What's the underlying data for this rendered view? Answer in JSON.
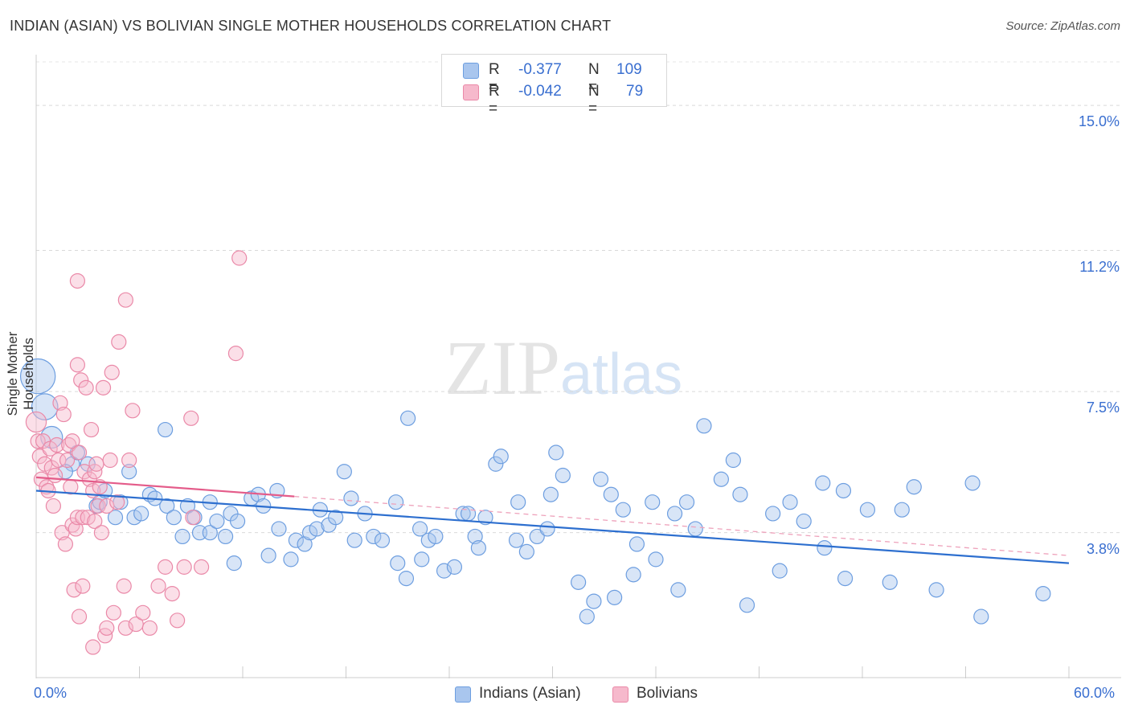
{
  "title": "INDIAN (ASIAN) VS BOLIVIAN SINGLE MOTHER HOUSEHOLDS CORRELATION CHART",
  "source": "Source: ZipAtlas.com",
  "watermark": {
    "zip": "ZIP",
    "atlas": "atlas"
  },
  "legend_top": [
    {
      "r_label": "R =",
      "r_value": "-0.377",
      "n_label": "N =",
      "n_value": "109",
      "color": "#a9c6ee",
      "stroke": "#6d9ee0"
    },
    {
      "r_label": "R =",
      "r_value": "-0.042",
      "n_label": "N =",
      "n_value": "79",
      "color": "#f6b9cc",
      "stroke": "#ea89a8"
    }
  ],
  "legend_bottom": [
    {
      "label": "Indians (Asian)",
      "color": "#a9c6ee",
      "stroke": "#6d9ee0"
    },
    {
      "label": "Bolivians",
      "color": "#f6b9cc",
      "stroke": "#ea89a8"
    }
  ],
  "chart_data": {
    "type": "scatter",
    "title": "INDIAN (ASIAN) VS BOLIVIAN SINGLE MOTHER HOUSEHOLDS CORRELATION CHART",
    "xlabel": "",
    "ylabel": "Single Mother Households",
    "xlim": [
      0,
      60
    ],
    "ylim": [
      0,
      16.5
    ],
    "x_tick_labels": [
      "0.0%",
      "60.0%"
    ],
    "y_ticks": [
      3.8,
      7.5,
      11.2,
      15.0
    ],
    "y_tick_labels": [
      "3.8%",
      "7.5%",
      "11.2%",
      "15.0%"
    ],
    "grid": true,
    "series": [
      {
        "name": "Indians (Asian)",
        "color": "#6d9ee0",
        "fill": "rgba(169,198,238,0.45)",
        "trend": {
          "x": [
            0,
            60
          ],
          "y": [
            4.9,
            3.0
          ],
          "color": "#2d6fcf"
        },
        "points": [
          [
            0.1,
            7.9,
            2.4
          ],
          [
            0.5,
            7.1,
            1.8
          ],
          [
            0.9,
            6.3,
            1.5
          ],
          [
            2.1,
            5.6,
            1
          ],
          [
            2.4,
            5.9,
            1
          ],
          [
            1.7,
            5.4,
            1
          ],
          [
            3.0,
            5.6,
            1
          ],
          [
            3.5,
            4.5,
            1
          ],
          [
            3.7,
            4.6,
            1
          ],
          [
            4.0,
            4.9,
            1
          ],
          [
            4.6,
            4.2,
            1
          ],
          [
            4.9,
            4.6,
            1
          ],
          [
            5.4,
            5.4,
            1
          ],
          [
            5.7,
            4.2,
            1
          ],
          [
            6.1,
            4.3,
            1
          ],
          [
            6.6,
            4.8,
            1
          ],
          [
            6.9,
            4.7,
            1
          ],
          [
            7.5,
            6.5,
            1
          ],
          [
            7.6,
            4.5,
            1
          ],
          [
            8.0,
            4.2,
            1
          ],
          [
            8.5,
            3.7,
            1
          ],
          [
            8.8,
            4.5,
            1
          ],
          [
            9.2,
            4.2,
            1
          ],
          [
            9.5,
            3.8,
            1
          ],
          [
            10.1,
            3.8,
            1
          ],
          [
            10.1,
            4.6,
            1
          ],
          [
            10.5,
            4.1,
            1
          ],
          [
            11.0,
            3.7,
            1
          ],
          [
            11.3,
            4.3,
            1
          ],
          [
            11.5,
            3.0,
            1
          ],
          [
            11.7,
            4.1,
            1
          ],
          [
            12.5,
            4.7,
            1
          ],
          [
            12.9,
            4.8,
            1
          ],
          [
            13.2,
            4.5,
            1
          ],
          [
            13.5,
            3.2,
            1
          ],
          [
            14.0,
            4.9,
            1
          ],
          [
            14.1,
            3.9,
            1
          ],
          [
            14.8,
            3.1,
            1
          ],
          [
            15.1,
            3.6,
            1
          ],
          [
            15.6,
            3.5,
            1
          ],
          [
            15.9,
            3.8,
            1
          ],
          [
            16.3,
            3.9,
            1
          ],
          [
            16.5,
            4.4,
            1
          ],
          [
            17.0,
            4.0,
            1
          ],
          [
            17.4,
            4.2,
            1
          ],
          [
            17.9,
            5.4,
            1
          ],
          [
            18.3,
            4.7,
            1
          ],
          [
            18.5,
            3.6,
            1
          ],
          [
            19.1,
            4.3,
            1
          ],
          [
            19.6,
            3.7,
            1
          ],
          [
            20.1,
            3.6,
            1
          ],
          [
            20.9,
            4.6,
            1
          ],
          [
            21.0,
            3.0,
            1
          ],
          [
            21.5,
            2.6,
            1
          ],
          [
            21.6,
            6.8,
            1
          ],
          [
            22.3,
            3.9,
            1
          ],
          [
            22.4,
            3.1,
            1
          ],
          [
            22.8,
            3.6,
            1
          ],
          [
            23.2,
            3.7,
            1
          ],
          [
            23.7,
            2.8,
            1
          ],
          [
            24.3,
            2.9,
            1
          ],
          [
            24.8,
            4.3,
            1
          ],
          [
            25.1,
            4.3,
            1
          ],
          [
            25.5,
            3.7,
            1
          ],
          [
            25.7,
            3.4,
            1
          ],
          [
            26.1,
            4.2,
            1
          ],
          [
            26.7,
            5.6,
            1
          ],
          [
            27.0,
            5.8,
            1
          ],
          [
            27.9,
            3.6,
            1
          ],
          [
            28.0,
            4.6,
            1
          ],
          [
            28.5,
            3.3,
            1
          ],
          [
            29.1,
            3.7,
            1
          ],
          [
            29.7,
            3.9,
            1
          ],
          [
            29.9,
            4.8,
            1
          ],
          [
            30.2,
            5.9,
            1
          ],
          [
            30.6,
            5.3,
            1
          ],
          [
            31.5,
            2.5,
            1
          ],
          [
            32.0,
            1.6,
            1
          ],
          [
            32.4,
            2.0,
            1
          ],
          [
            32.8,
            5.2,
            1
          ],
          [
            33.4,
            4.8,
            1
          ],
          [
            33.6,
            2.1,
            1
          ],
          [
            34.1,
            4.4,
            1
          ],
          [
            34.7,
            2.7,
            1
          ],
          [
            34.9,
            3.5,
            1
          ],
          [
            35.8,
            4.6,
            1
          ],
          [
            36.0,
            3.1,
            1
          ],
          [
            37.1,
            4.3,
            1
          ],
          [
            37.3,
            2.3,
            1
          ],
          [
            37.8,
            4.6,
            1
          ],
          [
            38.3,
            3.9,
            1
          ],
          [
            38.8,
            6.6,
            1
          ],
          [
            39.8,
            5.2,
            1
          ],
          [
            40.5,
            5.7,
            1
          ],
          [
            40.9,
            4.8,
            1
          ],
          [
            41.3,
            1.9,
            1
          ],
          [
            42.8,
            4.3,
            1
          ],
          [
            43.2,
            2.8,
            1
          ],
          [
            43.8,
            4.6,
            1
          ],
          [
            44.6,
            4.1,
            1
          ],
          [
            45.7,
            5.1,
            1
          ],
          [
            45.8,
            3.4,
            1
          ],
          [
            46.9,
            4.9,
            1
          ],
          [
            47.0,
            2.6,
            1
          ],
          [
            48.3,
            4.4,
            1
          ],
          [
            49.6,
            2.5,
            1
          ],
          [
            50.3,
            4.4,
            1
          ],
          [
            51.0,
            5.0,
            1
          ],
          [
            52.3,
            2.3,
            1
          ],
          [
            54.4,
            5.1,
            1
          ],
          [
            54.9,
            1.6,
            1
          ],
          [
            58.5,
            2.2,
            1
          ]
        ]
      },
      {
        "name": "Bolivians",
        "color": "#ea89a8",
        "fill": "rgba(246,185,204,0.45)",
        "trend": {
          "x": [
            0,
            15
          ],
          "y": [
            5.25,
            4.75
          ],
          "color": "#e45c8a"
        },
        "trend_ext": {
          "x": [
            15,
            60
          ],
          "y": [
            4.75,
            3.2
          ],
          "color": "#eea2bb"
        },
        "points": [
          [
            0.0,
            6.7,
            1.4
          ],
          [
            0.1,
            6.2,
            1
          ],
          [
            0.2,
            5.8,
            1
          ],
          [
            0.3,
            5.2,
            1
          ],
          [
            0.4,
            6.2,
            1
          ],
          [
            0.5,
            5.6,
            1
          ],
          [
            0.6,
            5.0,
            1
          ],
          [
            0.7,
            4.9,
            1
          ],
          [
            0.8,
            6.0,
            1
          ],
          [
            0.9,
            5.5,
            1
          ],
          [
            1.0,
            4.5,
            1
          ],
          [
            1.1,
            5.3,
            1
          ],
          [
            1.2,
            6.1,
            1
          ],
          [
            1.3,
            5.7,
            1
          ],
          [
            1.4,
            7.2,
            1
          ],
          [
            1.5,
            3.8,
            1
          ],
          [
            1.6,
            6.9,
            1
          ],
          [
            1.7,
            3.5,
            1
          ],
          [
            1.8,
            5.7,
            1
          ],
          [
            1.9,
            6.1,
            1
          ],
          [
            2.0,
            5.0,
            1
          ],
          [
            2.1,
            6.2,
            1
          ],
          [
            2.1,
            4.0,
            1
          ],
          [
            2.2,
            2.3,
            1
          ],
          [
            2.3,
            3.9,
            1
          ],
          [
            2.4,
            4.2,
            1
          ],
          [
            2.4,
            8.2,
            1
          ],
          [
            2.4,
            10.4,
            1
          ],
          [
            2.5,
            5.9,
            1
          ],
          [
            2.5,
            1.6,
            1
          ],
          [
            2.6,
            7.8,
            1
          ],
          [
            2.7,
            4.2,
            1
          ],
          [
            2.7,
            2.4,
            1
          ],
          [
            2.8,
            5.4,
            1
          ],
          [
            2.9,
            7.6,
            1
          ],
          [
            3.0,
            4.2,
            1
          ],
          [
            3.1,
            5.2,
            1
          ],
          [
            3.2,
            6.5,
            1
          ],
          [
            3.3,
            4.9,
            1
          ],
          [
            3.3,
            0.8,
            1
          ],
          [
            3.4,
            5.4,
            1
          ],
          [
            3.4,
            4.1,
            1
          ],
          [
            3.5,
            5.6,
            1
          ],
          [
            3.6,
            4.5,
            1
          ],
          [
            3.7,
            5.0,
            1
          ],
          [
            3.8,
            3.8,
            1
          ],
          [
            3.9,
            7.6,
            1
          ],
          [
            4.0,
            1.1,
            1
          ],
          [
            4.1,
            4.5,
            1
          ],
          [
            4.1,
            1.3,
            1
          ],
          [
            4.3,
            5.7,
            1
          ],
          [
            4.4,
            8.0,
            1
          ],
          [
            4.5,
            1.7,
            1
          ],
          [
            4.7,
            4.6,
            1
          ],
          [
            4.8,
            8.8,
            1
          ],
          [
            5.1,
            2.4,
            1
          ],
          [
            5.2,
            9.9,
            1
          ],
          [
            5.2,
            1.3,
            1
          ],
          [
            5.4,
            5.7,
            1
          ],
          [
            5.6,
            7.0,
            1
          ],
          [
            5.8,
            1.4,
            1
          ],
          [
            6.2,
            1.7,
            1
          ],
          [
            6.6,
            1.3,
            1
          ],
          [
            7.1,
            2.4,
            1
          ],
          [
            7.5,
            2.9,
            1
          ],
          [
            7.9,
            2.2,
            1
          ],
          [
            8.2,
            1.5,
            1
          ],
          [
            8.6,
            2.9,
            1
          ],
          [
            9.0,
            6.8,
            1
          ],
          [
            9.1,
            4.2,
            1
          ],
          [
            9.6,
            2.9,
            1
          ],
          [
            11.6,
            8.5,
            1
          ],
          [
            11.8,
            11.0,
            1
          ]
        ]
      }
    ]
  }
}
